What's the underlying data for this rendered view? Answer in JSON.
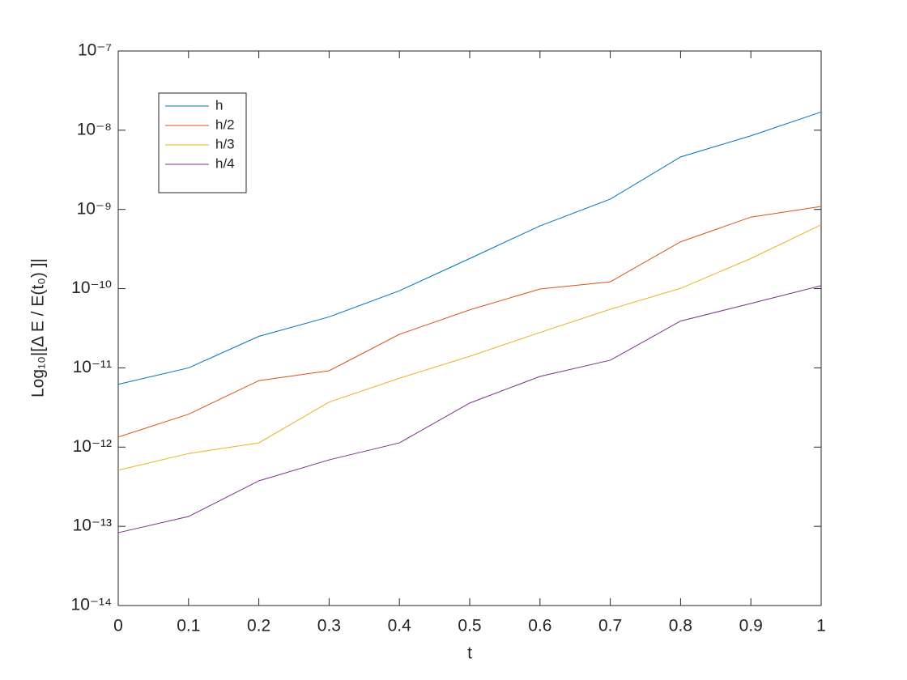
{
  "chart_data": {
    "type": "line",
    "x": [
      0,
      0.1,
      0.2,
      0.3,
      0.4,
      0.5,
      0.6,
      0.7,
      0.8,
      0.9,
      1
    ],
    "series": [
      {
        "name": "h",
        "color": "#0072BD",
        "values": [
          6.2e-12,
          1e-11,
          2.5e-11,
          4.4e-11,
          9.4e-11,
          2.4e-10,
          6.2e-10,
          1.35e-09,
          4.6e-09,
          8.5e-09,
          1.7e-08
        ]
      },
      {
        "name": "h/2",
        "color": "#D95319",
        "values": [
          1.34e-12,
          2.6e-12,
          6.9e-12,
          9.2e-12,
          2.65e-11,
          5.4e-11,
          9.9e-11,
          1.22e-10,
          3.9e-10,
          8e-10,
          1.09e-09
        ]
      },
      {
        "name": "h/3",
        "color": "#EDB120",
        "values": [
          5.1e-13,
          8.3e-13,
          1.13e-12,
          3.7e-12,
          7.4e-12,
          1.4e-11,
          2.8e-11,
          5.5e-11,
          1.01e-10,
          2.4e-10,
          6.4e-10
        ]
      },
      {
        "name": "h/4",
        "color": "#7E2F8E",
        "values": [
          8.3e-14,
          1.33e-13,
          3.75e-13,
          6.9e-13,
          1.13e-12,
          3.6e-12,
          7.8e-12,
          1.25e-11,
          3.9e-11,
          6.5e-11,
          1.09e-10
        ]
      }
    ],
    "xlabel": "t",
    "ylabel": "Log₁₀|[Δ E / E(t₀) ]|",
    "xlim": [
      0,
      1
    ],
    "xticks": [
      0,
      0.1,
      0.2,
      0.3,
      0.4,
      0.5,
      0.6,
      0.7,
      0.8,
      0.9,
      1
    ],
    "ylim": [
      1e-14,
      1e-07
    ],
    "yscale": "log",
    "yticks": [
      {
        "value": 1e-14,
        "label": "10⁻¹⁴"
      },
      {
        "value": 1e-13,
        "label": "10⁻¹³"
      },
      {
        "value": 1e-12,
        "label": "10⁻¹²"
      },
      {
        "value": 1e-11,
        "label": "10⁻¹¹"
      },
      {
        "value": 1e-10,
        "label": "10⁻¹⁰"
      },
      {
        "value": 1e-09,
        "label": "10⁻⁹"
      },
      {
        "value": 1e-08,
        "label": "10⁻⁸"
      },
      {
        "value": 1e-07,
        "label": "10⁻⁷"
      }
    ],
    "grid": false,
    "legend": "upper left"
  }
}
